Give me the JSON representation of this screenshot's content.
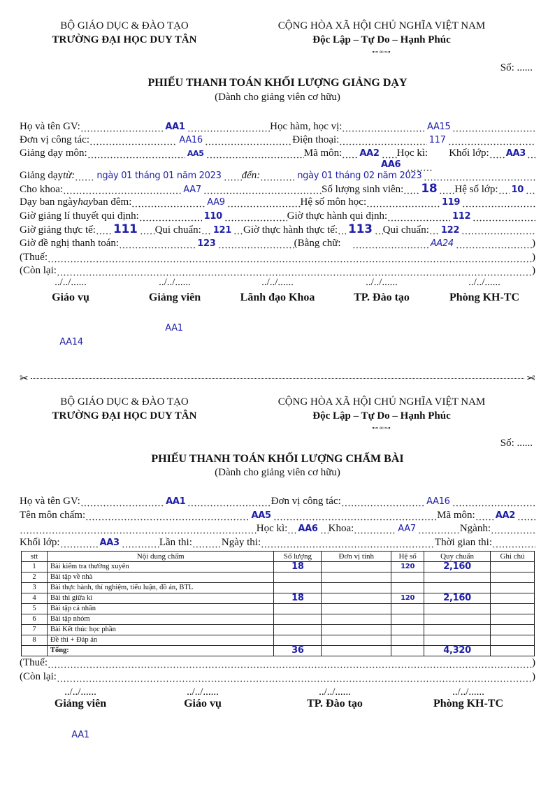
{
  "form1": {
    "ministry": "BỘ GIÁO DỤC & ĐÀO TẠO",
    "university": "TRƯỜNG ĐẠI HỌC DUY TÂN",
    "republic": "CỘNG HÒA XÃ HỘI CHỦ NGHĨA VIỆT NAM",
    "motto": "Độc Lập – Tự Do – Hạnh Phúc",
    "ornament": "⊷∞⊶",
    "so": "Số: ......",
    "title": "PHIẾU THANH TOÁN KHỐI LƯỢNG GIẢNG DẠY",
    "subtitle": "(Dành cho giảng viên cơ hữu)",
    "ho_ten_label": "Họ và tên GV:",
    "ho_ten": "AA1",
    "hoc_ham_label": "Học hàm, học vị:",
    "hoc_ham": "AA15",
    "don_vi_label": "Đơn vị công tác:",
    "don_vi": "AA16",
    "dien_thoai_label": "Điện thoại:",
    "dien_thoai": "117",
    "mon_label": "Giảng dạy môn:",
    "mon": "AA5",
    "ma_mon_label": "Mã môn:",
    "ma_mon": "AA2",
    "hoc_ki_label": "Học kì:",
    "hoc_ki": "AA6",
    "khoi_lop_label": "Khối lớp:",
    "khoi_lop": "AA3",
    "tu_label_a": "Giảng dạy ",
    "tu_label_b": "từ:",
    "tu": "ngày 01 tháng 01 năm 2023",
    "den_label": "đến:",
    "den": "ngày 01 tháng 02 năm 2023",
    "khoa_label": "Cho khoa:",
    "khoa": "AA7",
    "so_sv_label": "Số lượng sinh viên:",
    "so_sv": "18",
    "he_so_lop_label": "Hệ số lớp:",
    "he_so_lop": "10",
    "ban_ngay_label_a": "Dạy ban ngày ",
    "ban_ngay_label_b": "hay",
    "ban_ngay_label_c": " ban đêm:",
    "ban_ngay": "AA9",
    "he_so_mon_label": "Hệ số môn học:",
    "he_so_mon": "119",
    "lt_qd_label": "Giờ giảng lí thuyết qui định:",
    "lt_qd": "110",
    "th_qd_label": "Giờ thực hành qui định:",
    "th_qd": "112",
    "lt_tt_label": "Giờ giảng thực tế:",
    "lt_tt": "111",
    "qc_label": "Qui chuẩn:",
    "qc_lt": "121",
    "th_tt_label": "Giờ thực hành thực tế:",
    "th_tt": "113",
    "qc_th": "122",
    "de_nghi_label": "Giờ đề nghị thanh toán:",
    "de_nghi": "123",
    "bang_chu_label": "(Bằng chữ:",
    "bang_chu": "AA24",
    "thue_label": "(Thuế:",
    "con_lai_label": "(Còn lại:",
    "close_paren": ")",
    "date_blank": "../../......",
    "signers": [
      "Giáo vụ",
      "Giảng viên",
      "Lãnh đạo Khoa",
      "TP. Đào tạo",
      "Phòng KH-TC"
    ],
    "sig_name": "AA1",
    "sig_extra": "AA14"
  },
  "cut_icon": "scissors-icon",
  "form2": {
    "ministry": "BỘ GIÁO DỤC & ĐÀO TẠO",
    "university": "TRƯỜNG ĐẠI HỌC DUY TÂN",
    "republic": "CỘNG HÒA XÃ HỘI CHỦ NGHĨA VIỆT NAM",
    "motto": "Độc Lập – Tự Do – Hạnh Phúc",
    "ornament": "⊷∞⊶",
    "so": "Số: ......",
    "title": "PHIẾU THANH TOÁN KHỐI LƯỢNG CHẤM BÀI",
    "subtitle": "(Dành cho giảng viên cơ hữu)",
    "ho_ten_label": "Họ và tên GV:",
    "ho_ten": "AA1",
    "don_vi_label": "Đơn vị công tác:",
    "don_vi": "AA16",
    "mon_cham_label": "Tên môn chấm:",
    "mon_cham": "AA5",
    "ma_mon_label": "Mã môn:",
    "ma_mon": "AA2",
    "hoc_ki_label": "Học kì:",
    "hoc_ki": "AA6",
    "khoa_label": "Khoa:",
    "khoa": "AA7",
    "nganh_label": "Ngành:",
    "khoi_lop_label": "Khối lớp:",
    "khoi_lop": "AA3",
    "lan_thi_label": "Lần thi:",
    "ngay_thi_label": "Ngày thi:",
    "thoi_gian_label": "Thời gian thi:",
    "table": {
      "headers": [
        "stt",
        "Nội dung chấm",
        "Số lượng",
        "Đơn vị tính",
        "Hệ số",
        "Quy chuẩn",
        "Ghi chú"
      ],
      "rows": [
        {
          "stt": "1",
          "noi_dung": "Bài kiểm tra thường xuyên",
          "so_luong": "18",
          "don_vi": "",
          "he_so": "120",
          "quy_chuan": "2,160",
          "ghi_chu": ""
        },
        {
          "stt": "2",
          "noi_dung": "Bài tập về nhà",
          "so_luong": "",
          "don_vi": "",
          "he_so": "",
          "quy_chuan": "",
          "ghi_chu": ""
        },
        {
          "stt": "3",
          "noi_dung": "Bài thực hành, thí nghiệm, tiểu luận, đồ án, BTL",
          "so_luong": "",
          "don_vi": "",
          "he_so": "",
          "quy_chuan": "",
          "ghi_chu": ""
        },
        {
          "stt": "4",
          "noi_dung": "Bài thi giữa kì",
          "so_luong": "18",
          "don_vi": "",
          "he_so": "120",
          "quy_chuan": "2,160",
          "ghi_chu": ""
        },
        {
          "stt": "5",
          "noi_dung": "Bài tập cá nhân",
          "so_luong": "",
          "don_vi": "",
          "he_so": "",
          "quy_chuan": "",
          "ghi_chu": ""
        },
        {
          "stt": "6",
          "noi_dung": "Bài tập nhóm",
          "so_luong": "",
          "don_vi": "",
          "he_so": "",
          "quy_chuan": "",
          "ghi_chu": ""
        },
        {
          "stt": "7",
          "noi_dung": "Bài Kết thúc học phần",
          "so_luong": "",
          "don_vi": "",
          "he_so": "",
          "quy_chuan": "",
          "ghi_chu": ""
        },
        {
          "stt": "8",
          "noi_dung": "Đề thi + Đáp án",
          "so_luong": "",
          "don_vi": "",
          "he_so": "",
          "quy_chuan": "",
          "ghi_chu": ""
        }
      ],
      "total": {
        "label": "Tổng:",
        "so_luong": "36",
        "quy_chuan": "4,320"
      }
    },
    "thue_label": "(Thuế:",
    "con_lai_label": "(Còn lại:",
    "close_paren": ")",
    "date_blank": "../../......",
    "signers": [
      "Giảng viên",
      "Giáo vụ",
      "TP. Đào tạo",
      "Phòng KH-TC"
    ],
    "sig_name": "AA1"
  }
}
